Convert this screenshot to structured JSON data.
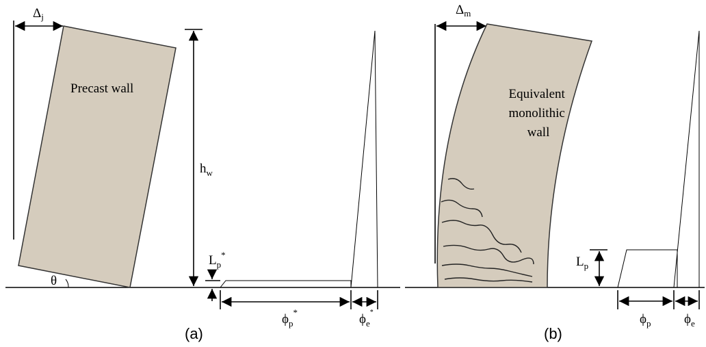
{
  "panel_a": {
    "drift": {
      "base": "Δ",
      "sub": "j"
    },
    "wall_label": "Precast wall",
    "height": {
      "base": "h",
      "sub": "w"
    },
    "plastic_length": {
      "base": "L",
      "sub": "p",
      "sup": "*"
    },
    "angle": "θ",
    "plastic_curvature": {
      "base": "ϕ",
      "sub": "p",
      "sup": "*"
    },
    "elastic_curvature": {
      "base": "ϕ",
      "sub": "e",
      "sup": "*"
    },
    "caption": "(a)"
  },
  "panel_b": {
    "drift": {
      "base": "Δ",
      "sub": "m"
    },
    "wall_label": [
      "Equivalent",
      "monolithic",
      "wall"
    ],
    "plastic_length": {
      "base": "L",
      "sub": "p"
    },
    "plastic_curvature": {
      "base": "ϕ",
      "sub": "p"
    },
    "elastic_curvature": {
      "base": "ϕ",
      "sub": "e"
    },
    "caption": "(b)"
  }
}
